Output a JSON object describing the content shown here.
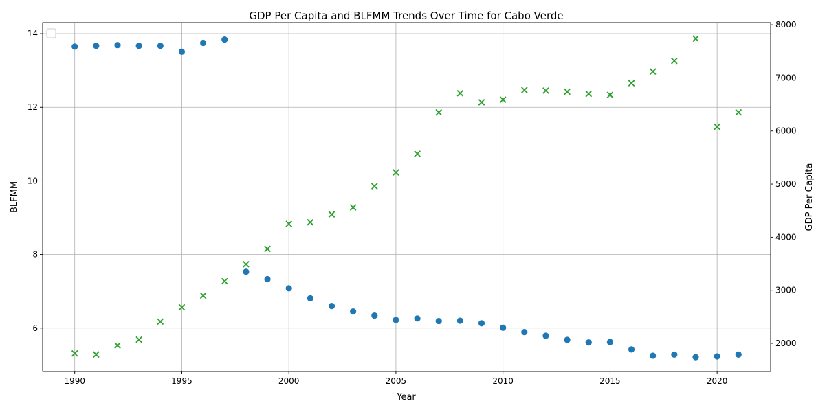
{
  "chart_data": {
    "type": "scatter",
    "title": "GDP Per Capita and BLFMM Trends Over Time for Cabo Verde",
    "xlabel": "Year",
    "x_ticks": [
      1990,
      1995,
      2000,
      2005,
      2010,
      2015,
      2020
    ],
    "xlim": [
      1988.5,
      2022.5
    ],
    "grid": true,
    "legend": "top-left (empty)",
    "left_axis": {
      "label": "BLFMM",
      "color": "#1f77b4",
      "ylim": [
        4.82,
        14.3
      ],
      "ticks": [
        6,
        8,
        10,
        12,
        14
      ]
    },
    "right_axis": {
      "label": "GDP Per Capita",
      "color": "#2ca02c",
      "ylim": [
        1470,
        8040
      ],
      "ticks": [
        2000,
        3000,
        4000,
        5000,
        6000,
        7000,
        8000
      ]
    },
    "series": [
      {
        "axis": "left",
        "marker": "circle",
        "color": "#1f77b4",
        "x": [
          1990,
          1991,
          1992,
          1993,
          1994,
          1995,
          1996,
          1997,
          1998,
          1999,
          2000,
          2001,
          2002,
          2003,
          2004,
          2005,
          2006,
          2007,
          2008,
          2009,
          2010,
          2011,
          2012,
          2013,
          2014,
          2015,
          2016,
          2017,
          2018,
          2019,
          2020,
          2021
        ],
        "values": [
          13.65,
          13.67,
          13.69,
          13.67,
          13.67,
          13.51,
          13.75,
          13.84,
          7.53,
          7.33,
          7.08,
          6.81,
          6.6,
          6.45,
          6.34,
          6.22,
          6.26,
          6.19,
          6.2,
          6.13,
          6.01,
          5.89,
          5.79,
          5.68,
          5.61,
          5.62,
          5.42,
          5.25,
          5.28,
          5.21,
          5.23,
          5.28
        ]
      },
      {
        "axis": "right",
        "marker": "x",
        "color": "#2ca02c",
        "x": [
          1990,
          1991,
          1992,
          1993,
          1994,
          1995,
          1996,
          1997,
          1998,
          1999,
          2000,
          2001,
          2002,
          2003,
          2004,
          2005,
          2006,
          2007,
          2008,
          2009,
          2010,
          2011,
          2012,
          2013,
          2014,
          2015,
          2016,
          2017,
          2018,
          2019,
          2020,
          2021
        ],
        "values": [
          1810,
          1790,
          1960,
          2070,
          2410,
          2680,
          2900,
          3170,
          3490,
          3780,
          4250,
          4280,
          4430,
          4560,
          4960,
          5220,
          5570,
          6350,
          6710,
          6540,
          6590,
          6770,
          6760,
          6740,
          6700,
          6680,
          6900,
          7120,
          7320,
          7740,
          6080,
          6350
        ]
      }
    ]
  }
}
